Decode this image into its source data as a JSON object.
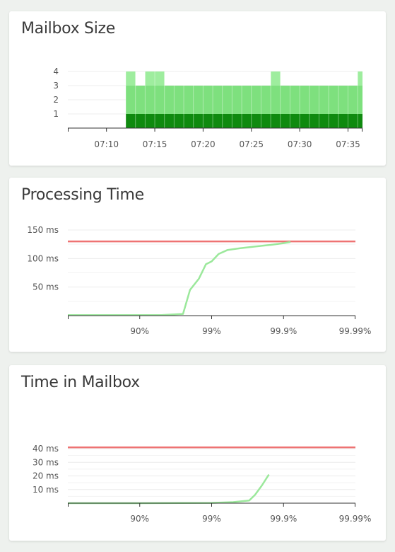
{
  "chart_data": [
    {
      "type": "bar",
      "title": "Mailbox Size",
      "xlabel": "",
      "ylabel": "",
      "x_ticks": [
        "07:10",
        "07:15",
        "07:20",
        "07:25",
        "07:30",
        "07:35"
      ],
      "x_tick_minutes": [
        10,
        15,
        20,
        25,
        30,
        35
      ],
      "x_range_minutes": [
        6,
        36.5
      ],
      "y_ticks": [
        "1",
        "2",
        "3",
        "4"
      ],
      "y_tick_values": [
        1,
        2,
        3,
        4
      ],
      "ylim": [
        0,
        4
      ],
      "grid": true,
      "bin_width_minutes": 1,
      "bins_start_minute": [
        12,
        13,
        14,
        15,
        16,
        17,
        18,
        19,
        20,
        21,
        22,
        23,
        24,
        25,
        26,
        27,
        28,
        29,
        30,
        31,
        32,
        33,
        34,
        35,
        36
      ],
      "series": [
        {
          "color": "#0f8a0f",
          "values": [
            1,
            1,
            1,
            1,
            1,
            1,
            1,
            1,
            1,
            1,
            1,
            1,
            1,
            1,
            1,
            1,
            1,
            1,
            1,
            1,
            1,
            1,
            1,
            1,
            1
          ]
        },
        {
          "color": "#7ee07e",
          "values": [
            3,
            3,
            3,
            3,
            3,
            3,
            3,
            3,
            3,
            3,
            3,
            3,
            3,
            3,
            3,
            3,
            3,
            3,
            3,
            3,
            3,
            3,
            3,
            3,
            3
          ]
        },
        {
          "color": "#9eed9e",
          "values": [
            4,
            3,
            4,
            4,
            3,
            3,
            3,
            3,
            3,
            3,
            3,
            3,
            3,
            3,
            3,
            4,
            3,
            3,
            3,
            3,
            3,
            3,
            3,
            3,
            4
          ]
        }
      ]
    },
    {
      "type": "line",
      "title": "Processing Time",
      "xlabel": "",
      "ylabel": "",
      "x_scale": "percentile",
      "x_ticks": [
        "90%",
        "99%",
        "99.9%",
        "99.99%"
      ],
      "x_tick_percentiles": [
        90,
        99,
        99.9,
        99.99
      ],
      "y_ticks": [
        "50 ms",
        "100 ms",
        "150 ms"
      ],
      "y_tick_values": [
        50,
        100,
        150
      ],
      "ylim": [
        0,
        150
      ],
      "grid": true,
      "threshold": {
        "value": 130,
        "color": "#ee7373"
      },
      "series": [
        {
          "color": "#9be89b",
          "x": [
            0,
            50,
            80,
            95,
            97.5,
            98,
            98.5,
            98.8,
            99,
            99.2,
            99.4,
            99.6,
            99.75,
            99.85,
            99.9,
            99.92
          ],
          "y": [
            1,
            1,
            1,
            1,
            3,
            45,
            65,
            90,
            95,
            108,
            115,
            118,
            121,
            124,
            127,
            129
          ]
        }
      ]
    },
    {
      "type": "line",
      "title": "Time in Mailbox",
      "xlabel": "",
      "ylabel": "",
      "x_scale": "percentile",
      "x_ticks": [
        "90%",
        "99%",
        "99.9%",
        "99.99%"
      ],
      "x_tick_percentiles": [
        90,
        99,
        99.9,
        99.99
      ],
      "y_ticks": [
        "10 ms",
        "20 ms",
        "30 ms",
        "40 ms"
      ],
      "y_tick_values": [
        10,
        20,
        30,
        40
      ],
      "ylim": [
        0,
        40
      ],
      "grid": true,
      "threshold": {
        "value": 41,
        "color": "#ee7373"
      },
      "series": [
        {
          "color": "#9be89b",
          "x": [
            0,
            50,
            90,
            99,
            99.5,
            99.7,
            99.75,
            99.8,
            99.84
          ],
          "y": [
            0,
            0,
            0,
            0.2,
            0.8,
            2,
            6,
            13,
            21
          ]
        }
      ]
    }
  ]
}
